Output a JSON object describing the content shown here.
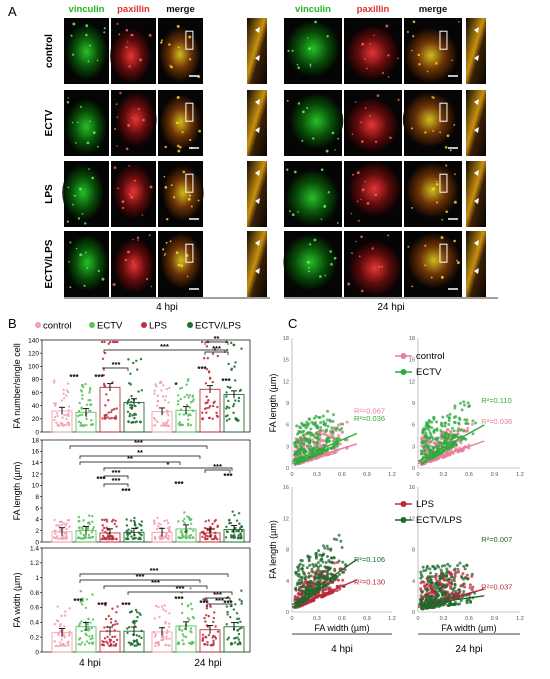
{
  "panelA": {
    "letter": "A",
    "channels": [
      "vinculin",
      "paxillin",
      "merge"
    ],
    "channel_colors": {
      "vinculin": "#22b522",
      "paxillin": "#e03030",
      "merge": "#111111"
    },
    "rows": [
      "control",
      "ECTV",
      "LPS",
      "ECTV/LPS"
    ],
    "timepoints": [
      "4 hpi",
      "24 hpi"
    ]
  },
  "panelB": {
    "letter": "B",
    "legend": [
      {
        "label": "control",
        "color": "#f4a0b0"
      },
      {
        "label": "ECTV",
        "color": "#5cc25c"
      },
      {
        "label": "LPS",
        "color": "#c0303c"
      },
      {
        "label": "ECTV/LPS",
        "color": "#1e6e2e"
      }
    ],
    "x_labels": [
      "4 hpi",
      "24 hpi"
    ],
    "sig": {
      "three": "***",
      "two": "**",
      "one": "*"
    }
  },
  "panelC": {
    "letter": "C",
    "legend_top": [
      {
        "label": "control",
        "color": "#e77d9a"
      },
      {
        "label": "ECTV",
        "color": "#2faa3c"
      }
    ],
    "legend_bottom": [
      {
        "label": "LPS",
        "color": "#b5283a"
      },
      {
        "label": "ECTV/LPS",
        "color": "#1d6a2c"
      }
    ],
    "x_label": "FA width (µm)",
    "y_label": "FA length (µm)",
    "x_ticks": [
      "0",
      "0.3",
      "0.6",
      "0.9",
      "1.2"
    ],
    "y_ticks": [
      "0",
      "3",
      "6",
      "9",
      "12",
      "15",
      "18"
    ],
    "y_ticks_bottom": [
      "0",
      "4",
      "8",
      "12",
      "16"
    ],
    "timepoints": [
      "4 hpi",
      "24 hpi"
    ],
    "r2": {
      "tl_control": "R²=0.067",
      "tl_ectv": "R²=0.036",
      "tr_control": "R²=0.036",
      "tr_ectv": "R²=0.110",
      "bl_lps": "R²=0.130",
      "bl_ectvlps": "R²=0.106",
      "br_lps": "R²=0.037",
      "br_ectvlps": "R²=0.007"
    }
  },
  "chart_data": [
    {
      "type": "bar",
      "ylabel": "FA number/single cell",
      "categories": [
        "4 hpi",
        "24 hpi"
      ],
      "ylim": [
        0,
        140
      ],
      "yticks": [
        "0",
        "20",
        "40",
        "60",
        "80",
        "100",
        "120",
        "140"
      ],
      "series": [
        {
          "name": "control",
          "values": [
            32,
            31
          ]
        },
        {
          "name": "ECTV",
          "values": [
            30,
            33
          ]
        },
        {
          "name": "LPS",
          "values": [
            68,
            65
          ]
        },
        {
          "name": "ECTV/LPS",
          "values": [
            45,
            57
          ]
        }
      ]
    },
    {
      "type": "bar",
      "ylabel": "FA length (µm)",
      "categories": [
        "4 hpi",
        "24 hpi"
      ],
      "ylim": [
        0,
        18
      ],
      "yticks": [
        "0",
        "2",
        "4",
        "6",
        "8",
        "10",
        "12",
        "14",
        "16",
        "18"
      ],
      "series": [
        {
          "name": "control",
          "values": [
            1.8,
            1.7
          ]
        },
        {
          "name": "ECTV",
          "values": [
            2.0,
            2.3
          ]
        },
        {
          "name": "LPS",
          "values": [
            1.6,
            1.6
          ]
        },
        {
          "name": "ECTV/LPS",
          "values": [
            1.7,
            2.2
          ]
        }
      ]
    },
    {
      "type": "bar",
      "ylabel": "FA width (µm)",
      "categories": [
        "4 hpi",
        "24 hpi"
      ],
      "ylim": [
        0,
        1.4
      ],
      "yticks": [
        "0",
        "0.2",
        "0.4",
        "0.6",
        "0.8",
        "1",
        "1.2",
        "1.4"
      ],
      "series": [
        {
          "name": "control",
          "values": [
            0.26,
            0.27
          ]
        },
        {
          "name": "ECTV",
          "values": [
            0.34,
            0.35
          ]
        },
        {
          "name": "LPS",
          "values": [
            0.28,
            0.3
          ]
        },
        {
          "name": "ECTV/LPS",
          "values": [
            0.28,
            0.34
          ]
        }
      ]
    }
  ]
}
